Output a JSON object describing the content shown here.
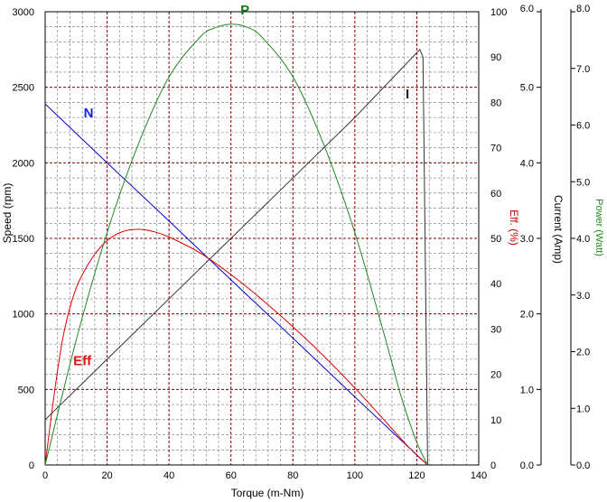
{
  "chart_data": {
    "type": "line",
    "xlabel": "Torque (m-Nm)",
    "x_axis": {
      "min": 0,
      "max": 140,
      "ticks": [
        0,
        20,
        40,
        60,
        80,
        100,
        120,
        140
      ],
      "tick_labels": [
        "0",
        "20",
        "40",
        "60",
        "80",
        "100",
        "120",
        "140"
      ]
    },
    "axes": {
      "speed": {
        "label": "Speed (rpm)",
        "min": 0,
        "max": 3000,
        "ticks": [
          0,
          500,
          1000,
          1500,
          2000,
          2500,
          3000
        ],
        "tick_labels": [
          "0",
          "500",
          "1000",
          "1500",
          "2000",
          "2500",
          "3000"
        ],
        "side": "left"
      },
      "eff": {
        "label": "Eff. (%)",
        "min": 0,
        "max": 100,
        "ticks": [
          0,
          10,
          20,
          30,
          40,
          50,
          60,
          70,
          80,
          90,
          100
        ],
        "tick_labels": [
          "0",
          "10",
          "20",
          "30",
          "40",
          "50",
          "60",
          "70",
          "80",
          "90",
          "100"
        ],
        "side": "right"
      },
      "current": {
        "label": "Current (Amp)",
        "min": 0,
        "max": 6,
        "ticks": [
          0,
          1,
          2,
          3,
          4,
          5,
          6
        ],
        "tick_labels": [
          "0.0",
          "1.0",
          "2.0",
          "3.0",
          "4.0",
          "5.0",
          "6.0"
        ],
        "side": "right"
      },
      "power": {
        "label": "Power (Watt)",
        "min": 0,
        "max": 8,
        "ticks": [
          0,
          1,
          2,
          3,
          4,
          5,
          6,
          7,
          8
        ],
        "tick_labels": [
          "0.0",
          "1.0",
          "2.0",
          "3.0",
          "4.0",
          "5.0",
          "6.0",
          "7.0",
          "8.0"
        ],
        "side": "right"
      }
    },
    "grid": true,
    "series": [
      {
        "name": "N",
        "axis": "speed",
        "color": "#0000cc",
        "x": [
          0,
          20,
          40,
          60,
          80,
          100,
          123.5
        ],
        "y": [
          2390,
          2000,
          1615,
          1225,
          840,
          450,
          0
        ]
      },
      {
        "name": "Eff",
        "axis": "eff",
        "color": "#dd0000",
        "x": [
          0,
          3,
          6,
          10,
          15,
          20,
          25,
          30,
          35,
          40,
          50,
          60,
          70,
          80,
          90,
          100,
          110,
          118,
          123.5
        ],
        "y": [
          0,
          16,
          29,
          39,
          45.5,
          49.5,
          51.5,
          52,
          51.5,
          50.3,
          46.8,
          42,
          36.5,
          30.5,
          24,
          17,
          9.5,
          3.5,
          0
        ]
      },
      {
        "name": "I",
        "axis": "current",
        "color": "#333333",
        "x": [
          0,
          20,
          40,
          60,
          80,
          100,
          121,
          122,
          123.5
        ],
        "y": [
          0.6,
          1.4,
          2.2,
          3.0,
          3.8,
          4.6,
          5.5,
          5.4,
          0
        ]
      },
      {
        "name": "P",
        "axis": "power",
        "color": "#228822",
        "x": [
          0,
          10,
          20,
          30,
          40,
          50,
          55,
          60,
          65,
          70,
          80,
          90,
          100,
          110,
          115,
          120,
          123.5
        ],
        "y": [
          0,
          2.2,
          4.1,
          5.65,
          6.85,
          7.55,
          7.72,
          7.78,
          7.73,
          7.55,
          6.85,
          5.65,
          4.1,
          2.2,
          1.2,
          0.4,
          0
        ]
      }
    ],
    "annotations": [
      {
        "text": "N",
        "series": "N",
        "x": 14,
        "y": 2300,
        "axis": "speed",
        "color": "#1a1ae6"
      },
      {
        "text": "Eff",
        "series": "Eff",
        "x": 12,
        "y": 22,
        "axis": "eff",
        "color": "#dd1111"
      },
      {
        "text": "I",
        "series": "I",
        "x": 117,
        "y": 4.85,
        "axis": "current",
        "color": "#222222"
      },
      {
        "text": "P",
        "series": "P",
        "x": 64.5,
        "y": 7.95,
        "axis": "power",
        "color": "#1a7a1a"
      }
    ]
  }
}
